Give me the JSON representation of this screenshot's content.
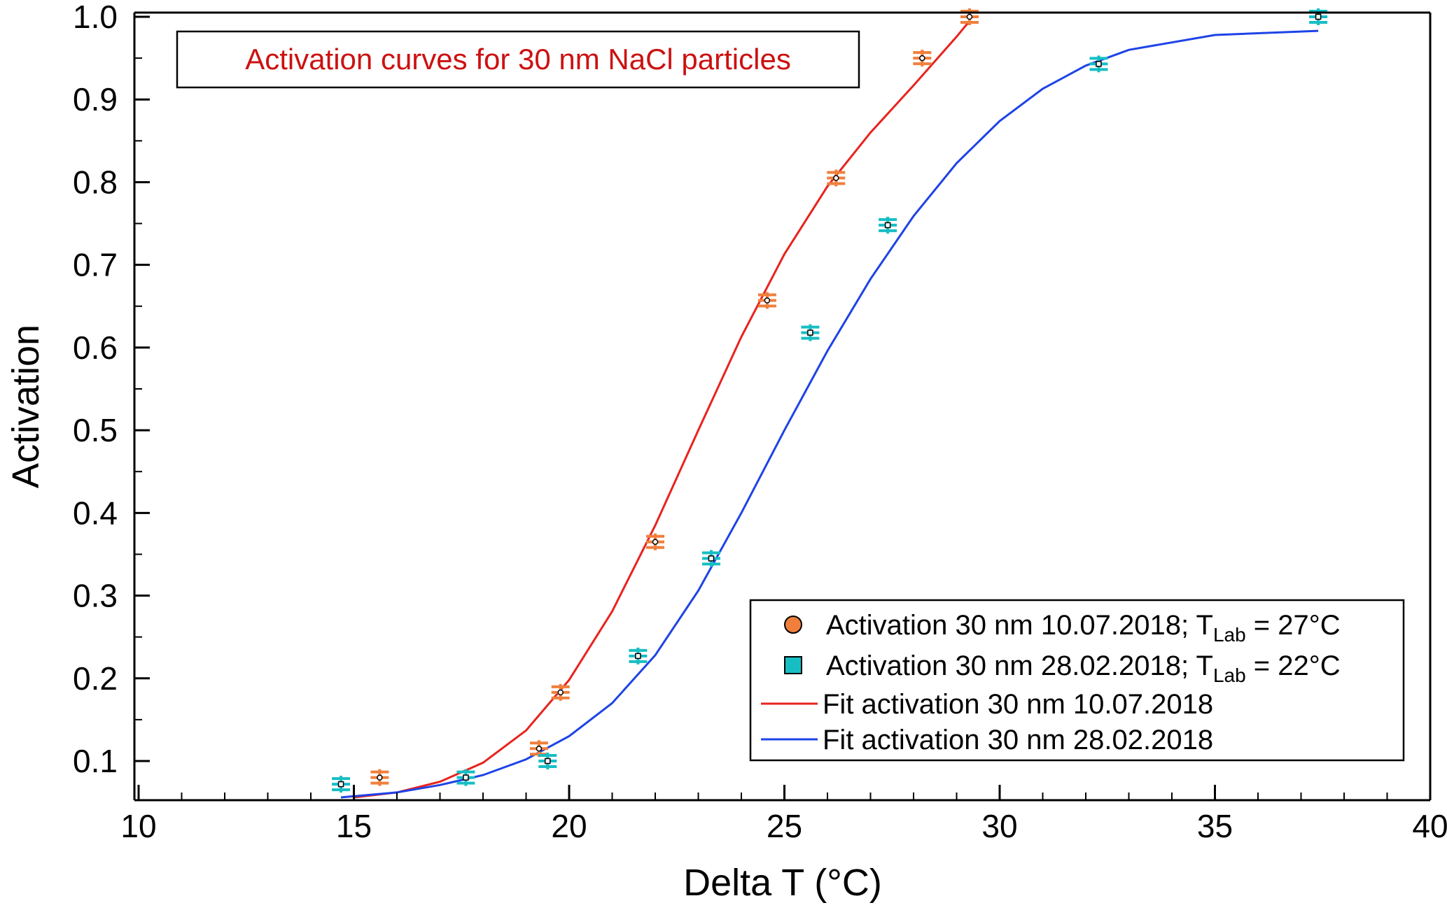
{
  "chart_data": {
    "type": "scatter",
    "title": "Activation curves for 30 nm NaCl particles",
    "xlabel": "Delta T (°C)",
    "ylabel": "Activation",
    "xlim": [
      10,
      40
    ],
    "ylim": [
      0.05,
      1.0
    ],
    "x_ticks": [
      10,
      15,
      20,
      25,
      30,
      35,
      40
    ],
    "y_ticks": [
      0.1,
      0.2,
      0.3,
      0.4,
      0.5,
      0.6,
      0.7,
      0.8,
      0.9,
      1.0
    ],
    "x_tick_labels": [
      "10",
      "15",
      "20",
      "25",
      "30",
      "35",
      "40"
    ],
    "y_tick_labels": [
      "0.1",
      "0.2",
      "0.3",
      "0.4",
      "0.5",
      "0.6",
      "0.7",
      "0.8",
      "0.9",
      "1.0"
    ],
    "grid": false,
    "legend_position": "bottom-right",
    "series": [
      {
        "name": "Activation 30 nm 10.07.2018; T_Lab = 27°C",
        "legend_main": "Activation 30 nm 10.07.2018; T",
        "legend_sub": "Lab",
        "legend_tail": " = 27°C",
        "kind": "points",
        "marker": "circle",
        "color": "#F07F3C",
        "x": [
          15.6,
          19.3,
          19.8,
          22.0,
          24.6,
          26.2,
          28.2,
          29.3
        ],
        "y": [
          0.08,
          0.115,
          0.183,
          0.365,
          0.657,
          0.805,
          0.95,
          1.0
        ]
      },
      {
        "name": "Activation 30 nm 28.02.2018; T_Lab = 22°C",
        "legend_main": "Activation 30 nm 28.02.2018; T",
        "legend_sub": "Lab",
        "legend_tail": " = 22°C",
        "kind": "points",
        "marker": "square",
        "color": "#16BEC4",
        "x": [
          14.7,
          17.6,
          19.5,
          21.6,
          23.3,
          25.6,
          27.4,
          32.3,
          37.4
        ],
        "y": [
          0.072,
          0.08,
          0.1,
          0.227,
          0.345,
          0.618,
          0.748,
          0.943,
          1.0
        ]
      },
      {
        "name": "Fit activation 30 nm 10.07.2018",
        "kind": "line",
        "color": "#E8231E",
        "x": [
          15.0,
          16.0,
          17.0,
          18.0,
          19.0,
          20.0,
          21.0,
          22.0,
          23.0,
          24.0,
          25.0,
          26.0,
          27.0,
          28.0,
          29.0,
          29.3
        ],
        "y": [
          0.056,
          0.062,
          0.075,
          0.098,
          0.137,
          0.198,
          0.281,
          0.385,
          0.5,
          0.613,
          0.713,
          0.795,
          0.86,
          0.917,
          0.976,
          0.995
        ]
      },
      {
        "name": "Fit activation 30 nm 28.02.2018",
        "kind": "line",
        "color": "#1E43E6",
        "x": [
          14.7,
          16.0,
          17.0,
          18.0,
          19.0,
          20.0,
          21.0,
          22.0,
          23.0,
          24.0,
          25.0,
          26.0,
          27.0,
          28.0,
          29.0,
          30.0,
          31.0,
          32.0,
          33.0,
          35.0,
          37.4
        ],
        "y": [
          0.056,
          0.062,
          0.071,
          0.083,
          0.102,
          0.13,
          0.17,
          0.228,
          0.306,
          0.4,
          0.5,
          0.596,
          0.683,
          0.759,
          0.823,
          0.874,
          0.913,
          0.941,
          0.96,
          0.978,
          0.983
        ]
      }
    ]
  }
}
